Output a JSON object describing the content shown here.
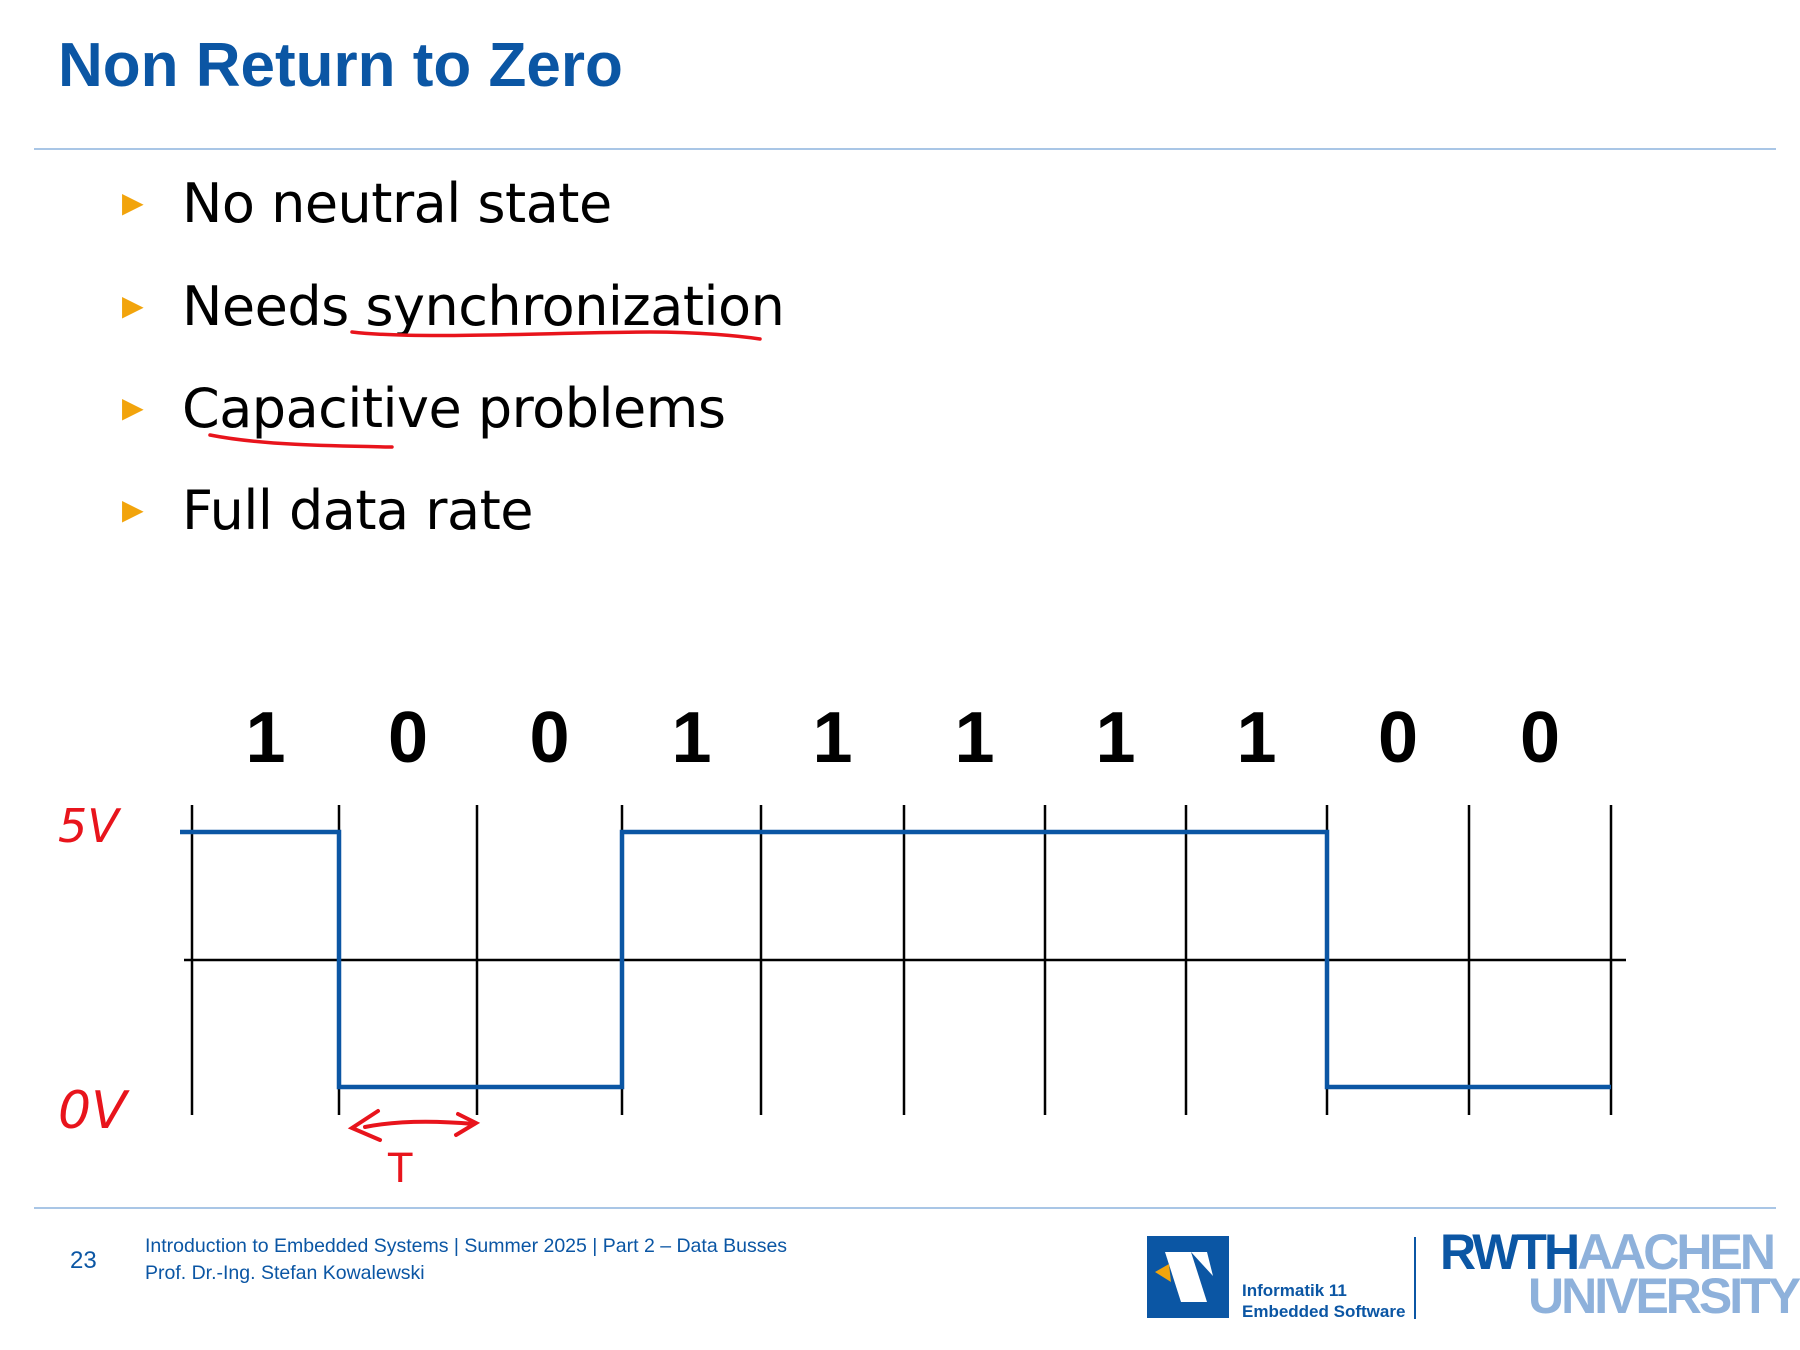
{
  "slide": {
    "title": "Non Return to Zero"
  },
  "bullets": [
    {
      "text": "No neutral state"
    },
    {
      "text": "Needs synchronization"
    },
    {
      "text": "Capacitive problems"
    },
    {
      "text": "Full data rate"
    }
  ],
  "diagram": {
    "bits": [
      "1",
      "0",
      "0",
      "1",
      "1",
      "1",
      "1",
      "1",
      "0",
      "0"
    ],
    "annotations": {
      "high_label": "5V",
      "low_label": "0V",
      "period_label": "T"
    },
    "colors": {
      "signal": "#0b56a4",
      "ink": "#e8141c",
      "grid": "#000000"
    }
  },
  "footer": {
    "page_number": "23",
    "course_line": "Introduction to Embedded Systems | Summer 2025 | Part 2 – Data Busses",
    "author_line": "Prof. Dr.-Ing. Stefan Kowalewski",
    "dept_line1": "Informatik 11",
    "dept_line2": "Embedded Software",
    "university_part1": "RWTH",
    "university_part2": "AACHEN",
    "university_part3": "UNIVERSITY"
  },
  "colors": {
    "title": "#0b56a4",
    "bullet_arrow": "#f2a40c",
    "rule": "#a9c6e6"
  }
}
